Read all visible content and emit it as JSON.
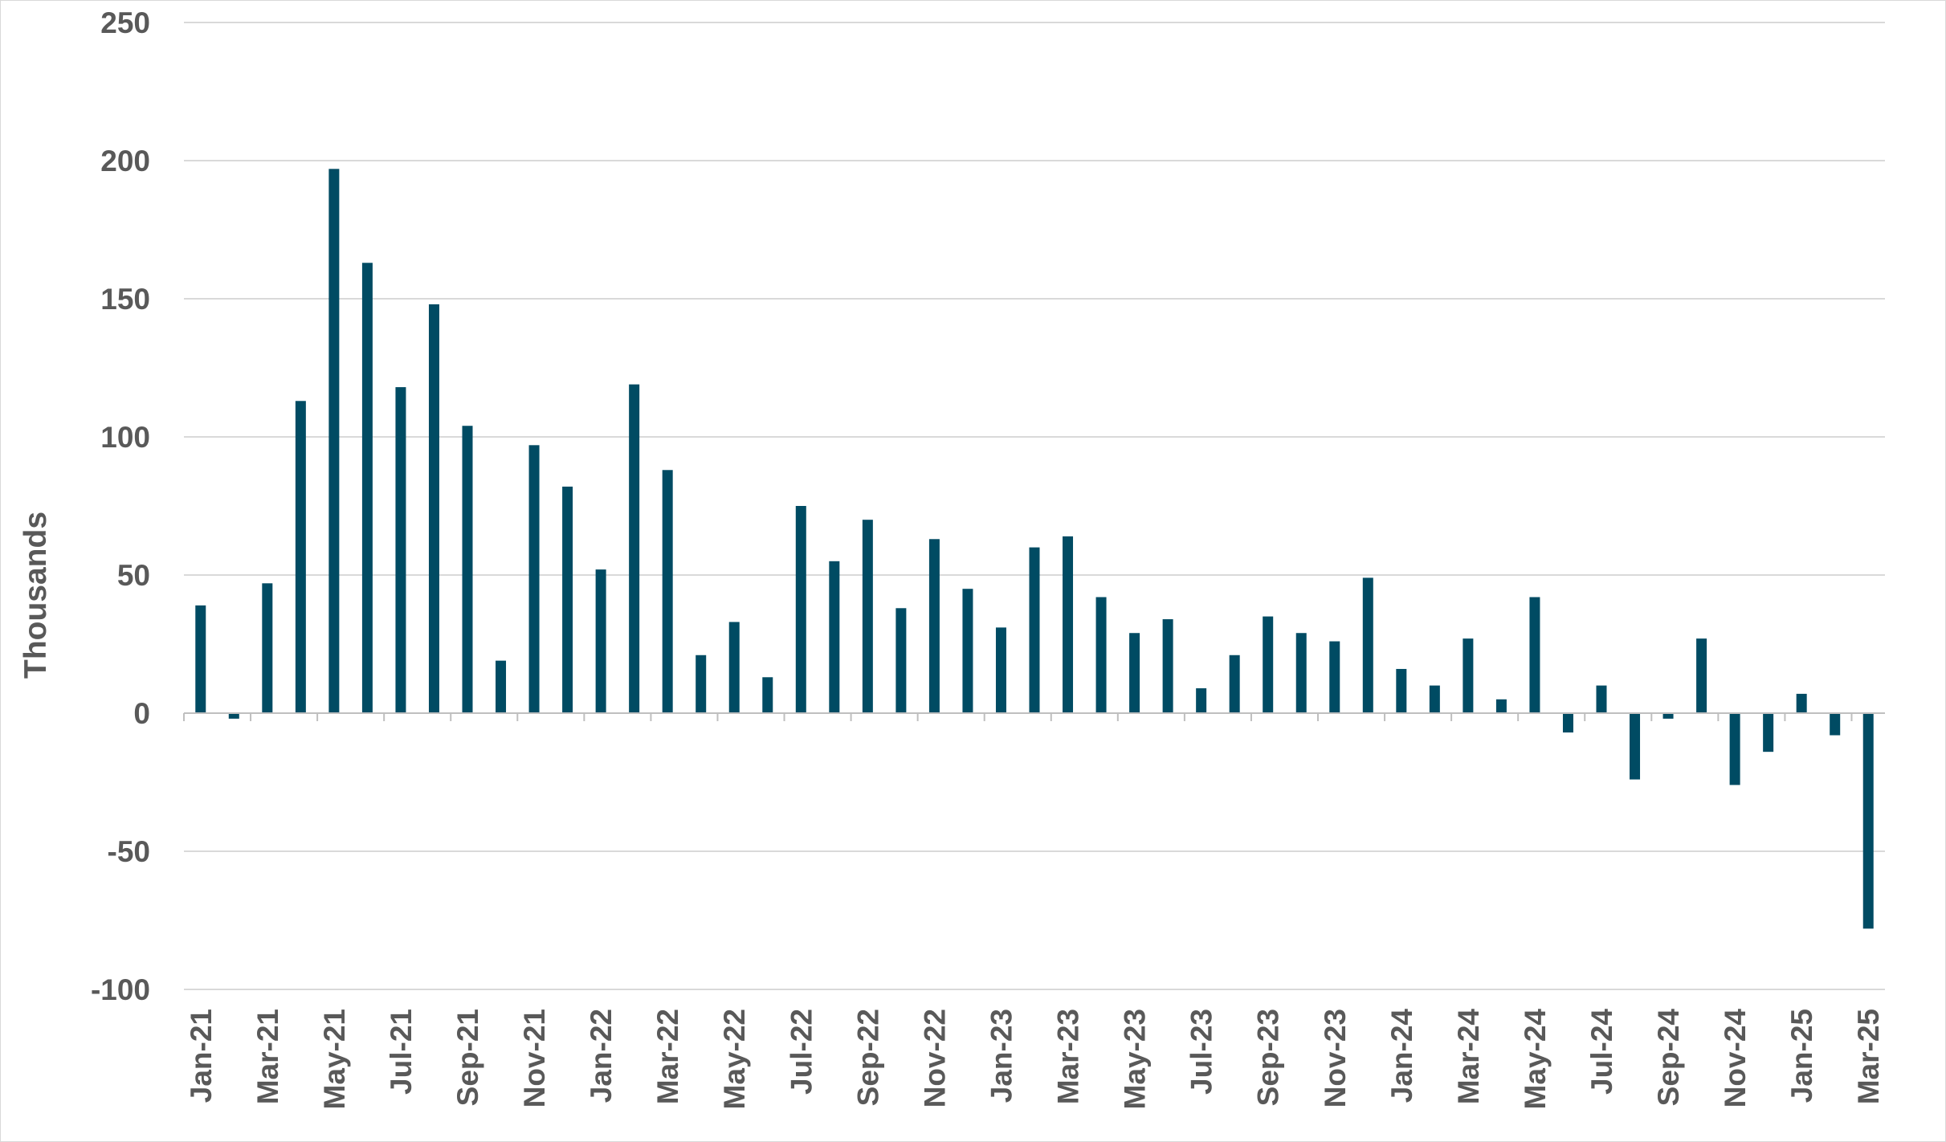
{
  "chart_data": {
    "type": "bar",
    "title": "",
    "xlabel": "",
    "ylabel": "Thousands",
    "ylim": [
      -100,
      250
    ],
    "yticks": [
      250,
      200,
      150,
      100,
      50,
      0,
      -50,
      -100
    ],
    "grid": true,
    "legend": "none",
    "bar_color": "#004B63",
    "categories": [
      "Jan-21",
      "Feb-21",
      "Mar-21",
      "Apr-21",
      "May-21",
      "Jun-21",
      "Jul-21",
      "Aug-21",
      "Sep-21",
      "Oct-21",
      "Nov-21",
      "Dec-21",
      "Jan-22",
      "Feb-22",
      "Mar-22",
      "Apr-22",
      "May-22",
      "Jun-22",
      "Jul-22",
      "Aug-22",
      "Sep-22",
      "Oct-22",
      "Nov-22",
      "Dec-22",
      "Jan-23",
      "Feb-23",
      "Mar-23",
      "Apr-23",
      "May-23",
      "Jun-23",
      "Jul-23",
      "Aug-23",
      "Sep-23",
      "Oct-23",
      "Nov-23",
      "Dec-23",
      "Jan-24",
      "Feb-24",
      "Mar-24",
      "Apr-24",
      "May-24",
      "Jun-24",
      "Jul-24",
      "Aug-24",
      "Sep-24",
      "Oct-24",
      "Nov-24",
      "Dec-24",
      "Jan-25",
      "Feb-25",
      "Mar-25"
    ],
    "tick_labels_shown": [
      "Jan-21",
      "Mar-21",
      "May-21",
      "Jul-21",
      "Sep-21",
      "Nov-21",
      "Jan-22",
      "Mar-22",
      "May-22",
      "Jul-22",
      "Sep-22",
      "Nov-22",
      "Jan-23",
      "Mar-23",
      "May-23",
      "Jul-23",
      "Sep-23",
      "Nov-23",
      "Jan-24",
      "Mar-24",
      "May-24",
      "Jul-24",
      "Sep-24",
      "Nov-24",
      "Jan-25",
      "Mar-25"
    ],
    "values": [
      39,
      -2,
      47,
      113,
      197,
      163,
      118,
      148,
      104,
      19,
      97,
      82,
      52,
      119,
      88,
      21,
      33,
      13,
      75,
      55,
      70,
      38,
      63,
      45,
      31,
      60,
      64,
      42,
      29,
      34,
      9,
      21,
      35,
      29,
      26,
      49,
      16,
      10,
      27,
      5,
      42,
      -7,
      10,
      -24,
      -2,
      27,
      -26,
      -14,
      7,
      -8,
      -78
    ]
  }
}
